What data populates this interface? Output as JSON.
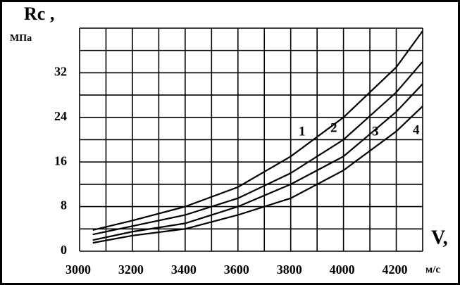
{
  "chart_data": {
    "type": "line",
    "y_label": "Rc ,",
    "y_unit": "МПа",
    "x_label": "V,",
    "x_unit": "м/с",
    "x": [
      3050,
      3200,
      3400,
      3600,
      3800,
      4000,
      4200,
      4300
    ],
    "series": [
      {
        "name": "1",
        "color": "#000000",
        "values": [
          3.8,
          5.5,
          8,
          11.5,
          17,
          24,
          33,
          39.5
        ]
      },
      {
        "name": "2",
        "color": "#000000",
        "values": [
          3,
          4.5,
          6.5,
          9.5,
          14,
          20,
          28.5,
          34
        ]
      },
      {
        "name": "3",
        "color": "#000000",
        "values": [
          2,
          3.5,
          5,
          8,
          12,
          17,
          25,
          30
        ]
      },
      {
        "name": "4",
        "color": "#000000",
        "values": [
          1.5,
          2.8,
          4,
          6.5,
          9.5,
          14.5,
          21.5,
          26
        ]
      }
    ],
    "xlim": [
      3000,
      4300
    ],
    "ylim": [
      0,
      40
    ],
    "xticks": [
      3000,
      3200,
      3400,
      3600,
      3800,
      4000,
      4200
    ],
    "yticks": [
      0,
      8,
      16,
      24,
      32
    ],
    "xgrid": [
      3000,
      3100,
      3200,
      3300,
      3400,
      3500,
      3600,
      3700,
      3800,
      3900,
      4000,
      4100,
      4200,
      4300
    ],
    "ygrid": [
      0,
      4,
      8,
      12,
      16,
      20,
      24,
      28,
      32,
      36,
      40
    ],
    "grid": true
  }
}
